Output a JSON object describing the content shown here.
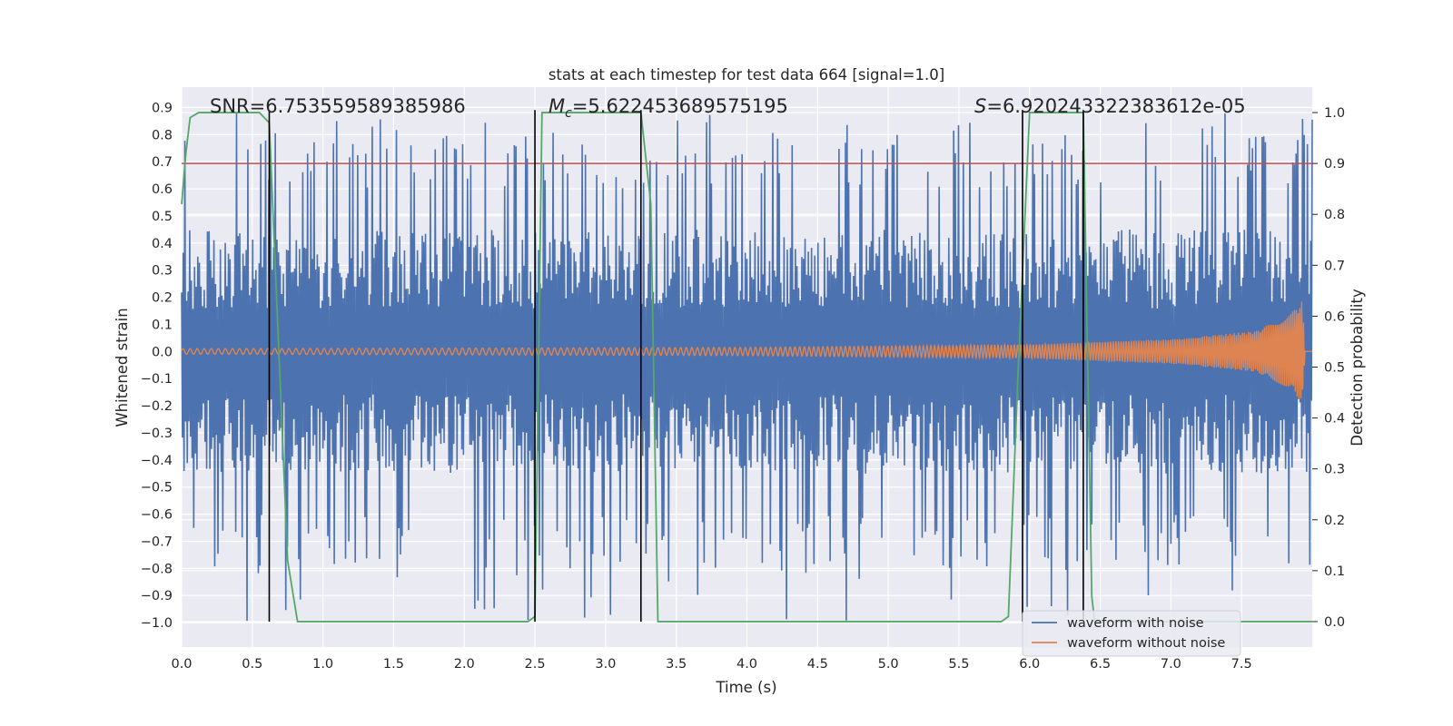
{
  "chart_data": {
    "type": "line",
    "title": "stats at each timestep for test data 664 [signal=1.0]",
    "xlabel": "Time (s)",
    "ylabel_left": "Whitened strain",
    "ylabel_right": "Detection probability",
    "xlim": [
      0.0,
      8.0
    ],
    "ylim_left": [
      -1.09,
      0.975
    ],
    "ylim_right": [
      -0.05,
      1.05
    ],
    "x_ticks": [
      "0.0",
      "0.5",
      "1.0",
      "1.5",
      "2.0",
      "2.5",
      "3.0",
      "3.5",
      "4.0",
      "4.5",
      "5.0",
      "5.5",
      "6.0",
      "6.5",
      "7.0",
      "7.5"
    ],
    "y_ticks_left": [
      "0.9",
      "0.8",
      "0.7",
      "0.6",
      "0.5",
      "0.4",
      "0.3",
      "0.2",
      "0.1",
      "0.0",
      "−0.1",
      "−0.2",
      "−0.3",
      "−0.4",
      "−0.5",
      "−0.6",
      "−0.7",
      "−0.8",
      "−0.9",
      "−1.0"
    ],
    "y_ticks_right": [
      "1.0",
      "0.9",
      "0.8",
      "0.7",
      "0.6",
      "0.5",
      "0.4",
      "0.3",
      "0.2",
      "0.1",
      "0.0"
    ],
    "grid": true,
    "legend_position": "bottom-right",
    "series": [
      {
        "name": "waveform with noise",
        "color": "#4c72b0",
        "axis": "left",
        "description_values": {
          "typical_positive_peak": 0.45,
          "typical_negative_peak": -0.45,
          "max_positive_peak": 0.88,
          "min_negative_peak": -1.0
        }
      },
      {
        "name": "waveform without noise",
        "color": "#dd8452",
        "axis": "left",
        "amplitude_envelope": {
          "x": [
            0.0,
            4.0,
            6.0,
            7.0,
            7.6,
            7.85,
            7.93,
            7.95,
            8.0
          ],
          "amp": [
            0.01,
            0.015,
            0.025,
            0.045,
            0.075,
            0.14,
            0.19,
            0.0,
            0.0
          ]
        }
      },
      {
        "name": "",
        "color": "#55a868",
        "axis": "right",
        "x": [
          0.0,
          0.03,
          0.06,
          0.12,
          0.55,
          0.62,
          0.75,
          0.82,
          2.45,
          2.5,
          2.55,
          3.25,
          3.32,
          3.37,
          5.8,
          5.85,
          5.92,
          6.0,
          6.38,
          6.44,
          6.46,
          8.0
        ],
        "y": [
          0.82,
          0.92,
          0.99,
          1.0,
          1.0,
          0.98,
          0.12,
          0.0,
          0.0,
          0.01,
          1.0,
          1.0,
          0.82,
          0.0,
          0.0,
          0.01,
          0.5,
          1.0,
          1.0,
          0.05,
          0.0,
          0.0
        ]
      }
    ],
    "threshold_line": {
      "axis": "right",
      "value": 0.9,
      "color": "#c44e52"
    },
    "vertical_markers": {
      "x": [
        0.62,
        2.5,
        3.25,
        5.95,
        6.38
      ],
      "color": "#000000"
    },
    "annotations": {
      "snr": "SNR=6.753559589385986",
      "mc_symbol": "M",
      "mc_subscript": "c",
      "mc_value": "=5.622453689575195",
      "s_symbol": "S",
      "s_value": "=6.920243322383612e-05"
    }
  },
  "colors": {
    "axes_background": "#eaeaf2",
    "grid": "#ffffff",
    "text": "#262626"
  }
}
